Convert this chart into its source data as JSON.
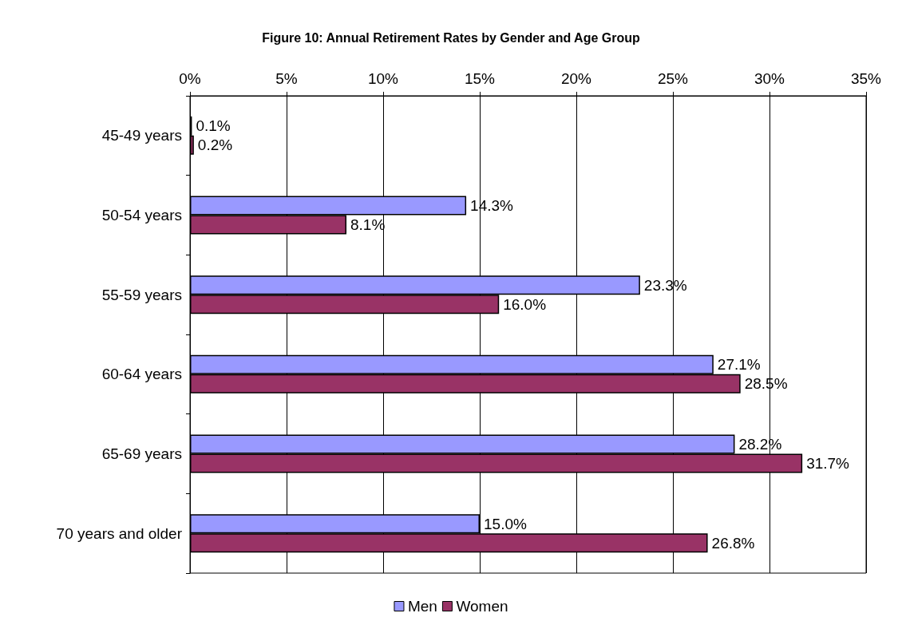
{
  "chart_data": {
    "type": "bar",
    "orientation": "horizontal",
    "title": "Figure 10: Annual Retirement Rates by Gender and Age Group",
    "categories": [
      "45-49 years",
      "50-54 years",
      "55-59 years",
      "60-64 years",
      "65-69 years",
      "70 years and older"
    ],
    "series": [
      {
        "name": "Men",
        "color": "#9999ff",
        "values": [
          0.1,
          14.3,
          23.3,
          27.1,
          28.2,
          15.0
        ],
        "value_labels": [
          "0.1%",
          "14.3%",
          "23.3%",
          "27.1%",
          "28.2%",
          "15.0%"
        ]
      },
      {
        "name": "Women",
        "color": "#993366",
        "values": [
          0.2,
          8.1,
          16.0,
          28.5,
          31.7,
          26.8
        ],
        "value_labels": [
          "0.2%",
          "8.1%",
          "16.0%",
          "28.5%",
          "31.7%",
          "26.8%"
        ]
      }
    ],
    "xlim": [
      0,
      35
    ],
    "xticks": [
      {
        "value": 0,
        "label": "0%"
      },
      {
        "value": 5,
        "label": "5%"
      },
      {
        "value": 10,
        "label": "10%"
      },
      {
        "value": 15,
        "label": "15%"
      },
      {
        "value": 20,
        "label": "20%"
      },
      {
        "value": 25,
        "label": "25%"
      },
      {
        "value": 30,
        "label": "30%"
      },
      {
        "value": 35,
        "label": "35%"
      }
    ],
    "grid": "x",
    "legend": "bottom"
  }
}
